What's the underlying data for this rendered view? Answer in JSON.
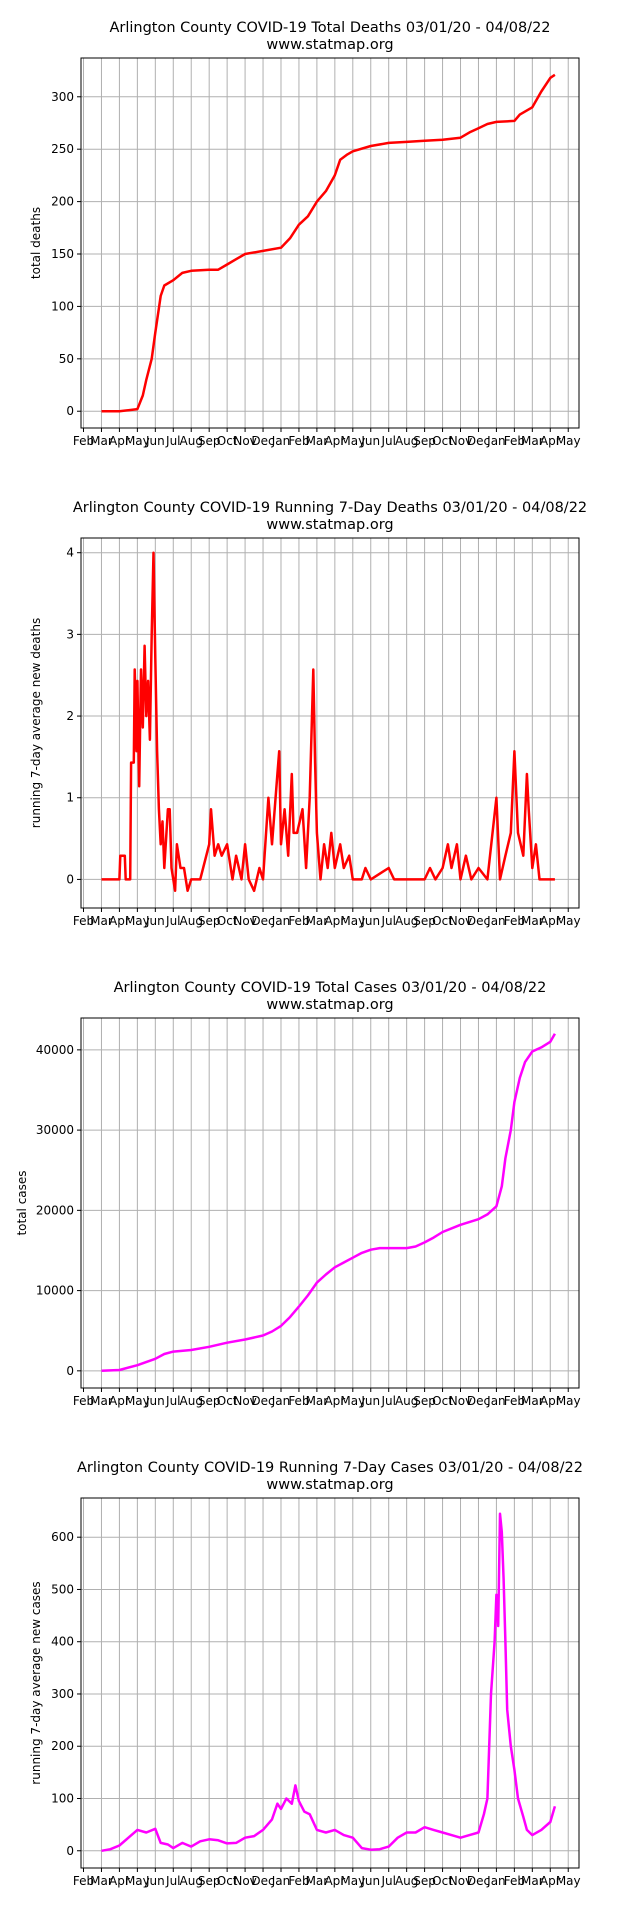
{
  "chart_data": [
    {
      "type": "line",
      "title": "Arlington County COVID-19 Total Deaths 03/01/20 - 04/08/22",
      "subtitle": "www.statmap.org",
      "y_label": "total deaths",
      "xlim": [
        -0.14,
        27.6
      ],
      "ylim": [
        -16,
        337
      ],
      "yticks": [
        0,
        50,
        100,
        150,
        200,
        250,
        300
      ],
      "grid": true,
      "xticks": [
        {
          "value": 0,
          "label": "Feb"
        },
        {
          "value": 1,
          "label": "Mar"
        },
        {
          "value": 2,
          "label": "Apr"
        },
        {
          "value": 3,
          "label": "May"
        },
        {
          "value": 4,
          "label": "Jun"
        },
        {
          "value": 5,
          "label": "Jul"
        },
        {
          "value": 6,
          "label": "Aug"
        },
        {
          "value": 7,
          "label": "Sep"
        },
        {
          "value": 8,
          "label": "Oct"
        },
        {
          "value": 9,
          "label": "Nov"
        },
        {
          "value": 10,
          "label": "Dec"
        },
        {
          "value": 11,
          "label": "Jan"
        },
        {
          "value": 12,
          "label": "Feb"
        },
        {
          "value": 13,
          "label": "Mar"
        },
        {
          "value": 14,
          "label": "Apr"
        },
        {
          "value": 15,
          "label": "May"
        },
        {
          "value": 16,
          "label": "Jun"
        },
        {
          "value": 17,
          "label": "Jul"
        },
        {
          "value": 18,
          "label": "Aug"
        },
        {
          "value": 19,
          "label": "Sep"
        },
        {
          "value": 20,
          "label": "Oct"
        },
        {
          "value": 21,
          "label": "Nov"
        },
        {
          "value": 22,
          "label": "Dec"
        },
        {
          "value": 23,
          "label": "Jan"
        },
        {
          "value": 24,
          "label": "Feb"
        },
        {
          "value": 25,
          "label": "Mar"
        },
        {
          "value": 26,
          "label": "Apr"
        },
        {
          "value": 27,
          "label": "May"
        }
      ],
      "color": "#ff0000",
      "x": [
        1,
        1.5,
        2,
        2.5,
        3,
        3.3,
        3.5,
        3.8,
        4,
        4.3,
        4.5,
        5,
        5.5,
        6,
        7,
        7.5,
        8,
        8.5,
        9,
        10,
        11,
        11.5,
        12,
        12.5,
        13,
        13.5,
        14,
        14.3,
        14.7,
        15,
        16,
        17,
        18,
        19,
        20,
        21,
        21.5,
        22,
        22.5,
        23,
        24,
        24.3,
        25,
        25.5,
        26,
        26.26
      ],
      "values": [
        0,
        0,
        0,
        1,
        2,
        15,
        30,
        50,
        75,
        110,
        120,
        125,
        132,
        134,
        135,
        135,
        140,
        145,
        150,
        153,
        156,
        165,
        178,
        186,
        200,
        210,
        225,
        240,
        245,
        248,
        253,
        256,
        257,
        258,
        259,
        261,
        266,
        270,
        274,
        276,
        277,
        283,
        290,
        305,
        318,
        321
      ]
    },
    {
      "type": "line",
      "title": "Arlington County COVID-19 Running 7-Day Deaths 03/01/20 - 04/08/22",
      "subtitle": "www.statmap.org",
      "y_label": "running 7-day average new deaths",
      "xlim": [
        -0.14,
        27.6
      ],
      "ylim": [
        -0.35,
        4.18
      ],
      "yticks": [
        0,
        1,
        2,
        3,
        4
      ],
      "grid": true,
      "xticks": [
        {
          "value": 0,
          "label": "Feb"
        },
        {
          "value": 1,
          "label": "Mar"
        },
        {
          "value": 2,
          "label": "Apr"
        },
        {
          "value": 3,
          "label": "May"
        },
        {
          "value": 4,
          "label": "Jun"
        },
        {
          "value": 5,
          "label": "Jul"
        },
        {
          "value": 6,
          "label": "Aug"
        },
        {
          "value": 7,
          "label": "Sep"
        },
        {
          "value": 8,
          "label": "Oct"
        },
        {
          "value": 9,
          "label": "Nov"
        },
        {
          "value": 10,
          "label": "Dec"
        },
        {
          "value": 11,
          "label": "Jan"
        },
        {
          "value": 12,
          "label": "Feb"
        },
        {
          "value": 13,
          "label": "Mar"
        },
        {
          "value": 14,
          "label": "Apr"
        },
        {
          "value": 15,
          "label": "May"
        },
        {
          "value": 16,
          "label": "Jun"
        },
        {
          "value": 17,
          "label": "Jul"
        },
        {
          "value": 18,
          "label": "Aug"
        },
        {
          "value": 19,
          "label": "Sep"
        },
        {
          "value": 20,
          "label": "Oct"
        },
        {
          "value": 21,
          "label": "Nov"
        },
        {
          "value": 22,
          "label": "Dec"
        },
        {
          "value": 23,
          "label": "Jan"
        },
        {
          "value": 24,
          "label": "Feb"
        },
        {
          "value": 25,
          "label": "Mar"
        },
        {
          "value": 26,
          "label": "Apr"
        },
        {
          "value": 27,
          "label": "May"
        }
      ],
      "color": "#ff0000",
      "x": [
        1,
        2,
        2.05,
        2.3,
        2.35,
        2.6,
        2.65,
        2.8,
        2.85,
        2.95,
        3,
        3.1,
        3.2,
        3.3,
        3.4,
        3.5,
        3.6,
        3.7,
        3.8,
        3.9,
        4,
        4.1,
        4.2,
        4.3,
        4.4,
        4.5,
        4.7,
        4.8,
        4.9,
        5.1,
        5.2,
        5.4,
        5.6,
        5.8,
        6,
        6.5,
        7,
        7.1,
        7.3,
        7.5,
        7.7,
        8,
        8.3,
        8.5,
        8.8,
        9,
        9.2,
        9.5,
        9.8,
        10,
        10.3,
        10.5,
        10.8,
        10.9,
        11,
        11.2,
        11.4,
        11.6,
        11.7,
        11.9,
        12.2,
        12.4,
        12.6,
        12.8,
        12.9,
        13,
        13.2,
        13.4,
        13.6,
        13.8,
        14,
        14.3,
        14.5,
        14.8,
        15,
        15.5,
        15.7,
        16,
        17,
        17.3,
        19,
        19.3,
        19.6,
        20,
        20.3,
        20.5,
        20.8,
        21,
        21.3,
        21.6,
        22,
        22.5,
        23,
        23.2,
        23.5,
        23.8,
        24,
        24.2,
        24.5,
        24.7,
        24.8,
        25,
        25.2,
        25.4,
        26.26
      ],
      "values": [
        0,
        0,
        0.29,
        0.29,
        0,
        0,
        1.43,
        1.43,
        2.57,
        1.57,
        2.43,
        1.14,
        2.57,
        1.86,
        2.86,
        2,
        2.43,
        1.71,
        3,
        4,
        2.71,
        1.57,
        0.86,
        0.43,
        0.71,
        0.14,
        0.86,
        0.86,
        0.14,
        -0.14,
        0.43,
        0.14,
        0.14,
        -0.14,
        0,
        0,
        0.43,
        0.86,
        0.29,
        0.43,
        0.29,
        0.43,
        0,
        0.29,
        0,
        0.43,
        0,
        -0.14,
        0.14,
        0,
        1,
        0.43,
        1.29,
        1.57,
        0.43,
        0.86,
        0.29,
        1.29,
        0.57,
        0.57,
        0.86,
        0.14,
        1,
        2.57,
        1.43,
        0.57,
        0,
        0.43,
        0.14,
        0.57,
        0.14,
        0.43,
        0.14,
        0.29,
        0,
        0,
        0.14,
        0,
        0.14,
        0,
        0,
        0.14,
        0,
        0.14,
        0.43,
        0.14,
        0.43,
        0,
        0.29,
        0,
        0.14,
        0,
        1,
        0,
        0.29,
        0.57,
        1.57,
        0.57,
        0.29,
        1.29,
        0.86,
        0.14,
        0.43,
        0,
        0
      ]
    },
    {
      "type": "line",
      "title": "Arlington County COVID-19 Total Cases 03/01/20 - 04/08/22",
      "subtitle": "www.statmap.org",
      "y_label": "total cases",
      "xlim": [
        -0.14,
        27.6
      ],
      "ylim": [
        -2140,
        43970
      ],
      "yticks": [
        0,
        10000,
        20000,
        30000,
        40000
      ],
      "grid": true,
      "xticks": [
        {
          "value": 0,
          "label": "Feb"
        },
        {
          "value": 1,
          "label": "Mar"
        },
        {
          "value": 2,
          "label": "Apr"
        },
        {
          "value": 3,
          "label": "May"
        },
        {
          "value": 4,
          "label": "Jun"
        },
        {
          "value": 5,
          "label": "Jul"
        },
        {
          "value": 6,
          "label": "Aug"
        },
        {
          "value": 7,
          "label": "Sep"
        },
        {
          "value": 8,
          "label": "Oct"
        },
        {
          "value": 9,
          "label": "Nov"
        },
        {
          "value": 10,
          "label": "Dec"
        },
        {
          "value": 11,
          "label": "Jan"
        },
        {
          "value": 12,
          "label": "Feb"
        },
        {
          "value": 13,
          "label": "Mar"
        },
        {
          "value": 14,
          "label": "Apr"
        },
        {
          "value": 15,
          "label": "May"
        },
        {
          "value": 16,
          "label": "Jun"
        },
        {
          "value": 17,
          "label": "Jul"
        },
        {
          "value": 18,
          "label": "Aug"
        },
        {
          "value": 19,
          "label": "Sep"
        },
        {
          "value": 20,
          "label": "Oct"
        },
        {
          "value": 21,
          "label": "Nov"
        },
        {
          "value": 22,
          "label": "Dec"
        },
        {
          "value": 23,
          "label": "Jan"
        },
        {
          "value": 24,
          "label": "Feb"
        },
        {
          "value": 25,
          "label": "Mar"
        },
        {
          "value": 26,
          "label": "Apr"
        },
        {
          "value": 27,
          "label": "May"
        }
      ],
      "color": "#ff00ff",
      "x": [
        1,
        2,
        3,
        4,
        4.5,
        5,
        6,
        7,
        8,
        9,
        10,
        10.5,
        11,
        11.5,
        12,
        12.5,
        13,
        13.5,
        14,
        14.5,
        15,
        15.5,
        16,
        16.5,
        17,
        18,
        18.5,
        19,
        19.5,
        20,
        21,
        22,
        22.5,
        23,
        23.3,
        23.5,
        23.8,
        24,
        24.3,
        24.6,
        25,
        25.5,
        26,
        26.26
      ],
      "values": [
        0,
        100,
        700,
        1500,
        2100,
        2400,
        2600,
        3000,
        3500,
        3900,
        4400,
        4900,
        5600,
        6700,
        8000,
        9400,
        11000,
        12000,
        12900,
        13500,
        14100,
        14700,
        15100,
        15300,
        15300,
        15300,
        15500,
        16000,
        16600,
        17300,
        18200,
        18900,
        19500,
        20500,
        23000,
        26500,
        30000,
        33500,
        36500,
        38500,
        39800,
        40300,
        41000,
        42000
      ]
    },
    {
      "type": "line",
      "title": "Arlington County COVID-19 Running 7-Day Cases 03/01/20 - 04/08/22",
      "subtitle": "www.statmap.org",
      "y_label": "running 7-day average new cases",
      "xlim": [
        -0.14,
        27.6
      ],
      "ylim": [
        -33,
        675
      ],
      "yticks": [
        0,
        100,
        200,
        300,
        400,
        500,
        600
      ],
      "grid": true,
      "xticks": [
        {
          "value": 0,
          "label": "Feb"
        },
        {
          "value": 1,
          "label": "Mar"
        },
        {
          "value": 2,
          "label": "Apr"
        },
        {
          "value": 3,
          "label": "May"
        },
        {
          "value": 4,
          "label": "Jun"
        },
        {
          "value": 5,
          "label": "Jul"
        },
        {
          "value": 6,
          "label": "Aug"
        },
        {
          "value": 7,
          "label": "Sep"
        },
        {
          "value": 8,
          "label": "Oct"
        },
        {
          "value": 9,
          "label": "Nov"
        },
        {
          "value": 10,
          "label": "Dec"
        },
        {
          "value": 11,
          "label": "Jan"
        },
        {
          "value": 12,
          "label": "Feb"
        },
        {
          "value": 13,
          "label": "Mar"
        },
        {
          "value": 14,
          "label": "Apr"
        },
        {
          "value": 15,
          "label": "May"
        },
        {
          "value": 16,
          "label": "Jun"
        },
        {
          "value": 17,
          "label": "Jul"
        },
        {
          "value": 18,
          "label": "Aug"
        },
        {
          "value": 19,
          "label": "Sep"
        },
        {
          "value": 20,
          "label": "Oct"
        },
        {
          "value": 21,
          "label": "Nov"
        },
        {
          "value": 22,
          "label": "Dec"
        },
        {
          "value": 23,
          "label": "Jan"
        },
        {
          "value": 24,
          "label": "Feb"
        },
        {
          "value": 25,
          "label": "Mar"
        },
        {
          "value": 26,
          "label": "Apr"
        },
        {
          "value": 27,
          "label": "May"
        }
      ],
      "color": "#ff00ff",
      "x": [
        1,
        1.5,
        2,
        2.5,
        3,
        3.5,
        4,
        4.3,
        4.7,
        5,
        5.5,
        6,
        6.5,
        7,
        7.5,
        8,
        8.5,
        9,
        9.5,
        10,
        10.5,
        10.8,
        11,
        11.3,
        11.6,
        11.8,
        12,
        12.3,
        12.6,
        13,
        13.5,
        14,
        14.5,
        15,
        15.5,
        16,
        16.5,
        17,
        17.5,
        18,
        18.5,
        19,
        19.5,
        20,
        20.5,
        21,
        21.5,
        22,
        22.3,
        22.5,
        22.7,
        22.9,
        23,
        23.1,
        23.2,
        23.3,
        23.4,
        23.5,
        23.6,
        23.8,
        24,
        24.2,
        24.5,
        24.7,
        25,
        25.5,
        26,
        26.26
      ],
      "values": [
        0,
        3,
        10,
        25,
        40,
        35,
        42,
        15,
        12,
        5,
        15,
        8,
        18,
        22,
        20,
        14,
        15,
        25,
        28,
        40,
        60,
        90,
        80,
        100,
        90,
        125,
        95,
        75,
        70,
        40,
        35,
        40,
        30,
        25,
        5,
        2,
        3,
        8,
        25,
        35,
        35,
        45,
        40,
        35,
        30,
        25,
        30,
        35,
        70,
        100,
        300,
        400,
        490,
        430,
        645,
        610,
        520,
        400,
        270,
        200,
        155,
        100,
        65,
        40,
        30,
        40,
        55,
        85
      ]
    }
  ]
}
